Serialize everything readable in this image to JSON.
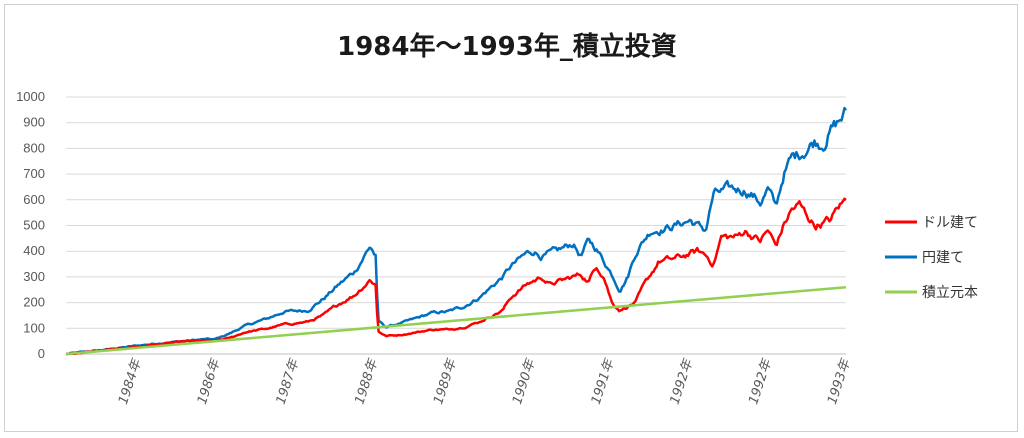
{
  "chart_data": {
    "type": "line",
    "title": "1984年～1993年_積立投資",
    "ylim": [
      0,
      1000
    ],
    "yticks": [
      "0",
      "100",
      "200",
      "300",
      "400",
      "500",
      "600",
      "700",
      "800",
      "900",
      "1000"
    ],
    "xticks": [
      "1984年",
      "1986年",
      "1987年",
      "1988年",
      "1989年",
      "1990年",
      "1991年",
      "1992年",
      "1992年",
      "1993年"
    ],
    "grid": true,
    "legend_position": "right",
    "series": [
      {
        "name": "ドル建て",
        "color": "#ff0000",
        "anchors": [
          [
            0,
            0
          ],
          [
            0.03,
            8
          ],
          [
            0.06,
            18
          ],
          [
            0.09,
            28
          ],
          [
            0.12,
            38
          ],
          [
            0.15,
            48
          ],
          [
            0.18,
            52
          ],
          [
            0.19,
            50
          ],
          [
            0.21,
            62
          ],
          [
            0.23,
            85
          ],
          [
            0.26,
            100
          ],
          [
            0.28,
            115
          ],
          [
            0.31,
            125
          ],
          [
            0.33,
            150
          ],
          [
            0.35,
            195
          ],
          [
            0.37,
            230
          ],
          [
            0.38,
            260
          ],
          [
            0.39,
            290
          ],
          [
            0.397,
            270
          ],
          [
            0.4,
            90
          ],
          [
            0.41,
            70
          ],
          [
            0.43,
            75
          ],
          [
            0.45,
            85
          ],
          [
            0.47,
            95
          ],
          [
            0.49,
            95
          ],
          [
            0.51,
            105
          ],
          [
            0.53,
            125
          ],
          [
            0.56,
            170
          ],
          [
            0.57,
            220
          ],
          [
            0.59,
            270
          ],
          [
            0.61,
            300
          ],
          [
            0.62,
            270
          ],
          [
            0.64,
            290
          ],
          [
            0.66,
            310
          ],
          [
            0.67,
            280
          ],
          [
            0.68,
            345
          ],
          [
            0.69,
            300
          ],
          [
            0.7,
            200
          ],
          [
            0.71,
            170
          ],
          [
            0.73,
            200
          ],
          [
            0.74,
            260
          ],
          [
            0.75,
            310
          ],
          [
            0.76,
            360
          ],
          [
            0.78,
            370
          ],
          [
            0.8,
            390
          ],
          [
            0.81,
            400
          ],
          [
            0.82,
            385
          ],
          [
            0.83,
            350
          ],
          [
            0.84,
            455
          ],
          [
            0.86,
            455
          ],
          [
            0.87,
            480
          ],
          [
            0.88,
            460
          ],
          [
            0.89,
            440
          ],
          [
            0.9,
            480
          ],
          [
            0.91,
            420
          ],
          [
            0.92,
            500
          ],
          [
            0.93,
            560
          ],
          [
            0.94,
            580
          ],
          [
            0.95,
            540
          ],
          [
            0.96,
            500
          ],
          [
            0.98,
            520
          ],
          [
            0.99,
            570
          ],
          [
            1,
            600
          ]
        ]
      },
      {
        "name": "円建て",
        "color": "#0070c0",
        "anchors": [
          [
            0,
            0
          ],
          [
            0.03,
            10
          ],
          [
            0.06,
            20
          ],
          [
            0.09,
            32
          ],
          [
            0.12,
            42
          ],
          [
            0.15,
            50
          ],
          [
            0.18,
            58
          ],
          [
            0.19,
            56
          ],
          [
            0.21,
            80
          ],
          [
            0.23,
            110
          ],
          [
            0.26,
            140
          ],
          [
            0.28,
            165
          ],
          [
            0.31,
            170
          ],
          [
            0.33,
            215
          ],
          [
            0.35,
            270
          ],
          [
            0.37,
            320
          ],
          [
            0.38,
            370
          ],
          [
            0.39,
            420
          ],
          [
            0.397,
            380
          ],
          [
            0.4,
            130
          ],
          [
            0.41,
            105
          ],
          [
            0.43,
            120
          ],
          [
            0.45,
            140
          ],
          [
            0.47,
            160
          ],
          [
            0.49,
            165
          ],
          [
            0.51,
            185
          ],
          [
            0.53,
            220
          ],
          [
            0.56,
            300
          ],
          [
            0.57,
            340
          ],
          [
            0.59,
            390
          ],
          [
            0.6,
            400
          ],
          [
            0.61,
            380
          ],
          [
            0.63,
            400
          ],
          [
            0.65,
            430
          ],
          [
            0.66,
            380
          ],
          [
            0.67,
            440
          ],
          [
            0.68,
            410
          ],
          [
            0.7,
            310
          ],
          [
            0.71,
            250
          ],
          [
            0.72,
            300
          ],
          [
            0.73,
            390
          ],
          [
            0.74,
            440
          ],
          [
            0.75,
            480
          ],
          [
            0.77,
            490
          ],
          [
            0.79,
            510
          ],
          [
            0.8,
            520
          ],
          [
            0.81,
            500
          ],
          [
            0.82,
            480
          ],
          [
            0.83,
            620
          ],
          [
            0.85,
            640
          ],
          [
            0.87,
            640
          ],
          [
            0.88,
            620
          ],
          [
            0.89,
            590
          ],
          [
            0.9,
            640
          ],
          [
            0.91,
            570
          ],
          [
            0.92,
            700
          ],
          [
            0.93,
            760
          ],
          [
            0.95,
            800
          ],
          [
            0.96,
            830
          ],
          [
            0.97,
            820
          ],
          [
            0.98,
            870
          ],
          [
            0.99,
            900
          ],
          [
            1,
            940
          ]
        ]
      },
      {
        "name": "積立元本",
        "color": "#92d050",
        "anchors": [
          [
            0,
            0
          ],
          [
            1,
            260
          ]
        ]
      }
    ]
  }
}
